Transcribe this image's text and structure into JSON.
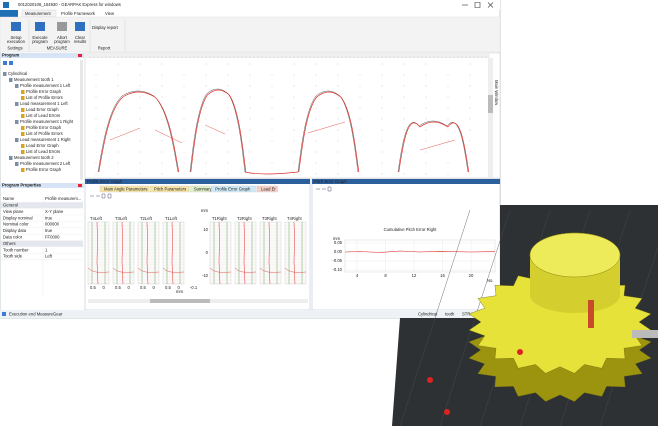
{
  "window": {
    "title": "0012020106_154930 - GEARPAK Express for windows",
    "tabs": [
      "Measurement",
      "Profile Framework",
      "View"
    ]
  },
  "ribbon": {
    "buttons": [
      "Setup execution",
      "Execute program",
      "Abort program",
      "Clear results"
    ],
    "report_button": "Display report",
    "groups": [
      "Settings",
      "MEASURE",
      "Report"
    ]
  },
  "program": {
    "title": "Program",
    "tree": [
      "Cylindrical",
      "Measurement tooth 1",
      "Profile measurement 1 Left",
      "Profile Error Graph",
      "List of Profile Errors",
      "Lead measurement 1 Left",
      "Lead Error Graph",
      "List of Lead Errors",
      "Profile measurement 1 Right",
      "Profile Error Graph",
      "List of Profile Errors",
      "Lead measurement 1 Right",
      "Lead Error Graph",
      "List of Lead Errors",
      "Measurement tooth 2",
      "Profile measurement 2 Left",
      "Profile Error Graph"
    ]
  },
  "properties": {
    "title": "Program Properties",
    "rows": [
      [
        "Name",
        "Profile measurem..."
      ],
      [
        "General"
      ],
      [
        "View plane",
        "X-Y plane"
      ],
      [
        "Display nominal",
        "true"
      ],
      [
        "Nominal color",
        "000000"
      ],
      [
        "Display data",
        "true"
      ],
      [
        "Data color",
        "FF0000"
      ],
      [
        "Others"
      ],
      [
        "Tooth number",
        "1"
      ],
      [
        "Tooth side",
        "Left"
      ]
    ]
  },
  "main_view": {
    "side_tab": "Main Window"
  },
  "profile_pane": {
    "title": "Profile Error Graph",
    "tabs": [
      "Main Angle Parameters",
      "Pitch Parameters",
      "Summary",
      "Profile Error Graph",
      "Lead Er"
    ],
    "left_labels": [
      "T4Left",
      "T3Left",
      "T2Left",
      "T1Left"
    ],
    "right_labels": [
      "T1Right",
      "T2Right",
      "T3Right",
      "T4Right"
    ],
    "y_ticks": [
      "mm",
      "10",
      "0",
      "-10"
    ],
    "x_ticks": [
      "0.5",
      "0",
      "0.5",
      "0",
      "0.5",
      "0",
      "0.5",
      "0",
      "-0.1"
    ],
    "x_unit": "mm"
  },
  "pitch_pane": {
    "title": "Pitch Error Graph",
    "chart_title": "Cumulative Pitch Error Right",
    "y_unit": "mm",
    "y_ticks": [
      "0.05",
      "0.00",
      "-0.05",
      "-0.10"
    ],
    "x_ticks": [
      "4",
      "8",
      "12",
      "16",
      "20"
    ],
    "x_unit": "No."
  },
  "status": {
    "left": "Execution end  MeasureGear",
    "right": [
      "Cylindrical",
      "tooth",
      "STRATO-APEX 9166"
    ]
  }
}
